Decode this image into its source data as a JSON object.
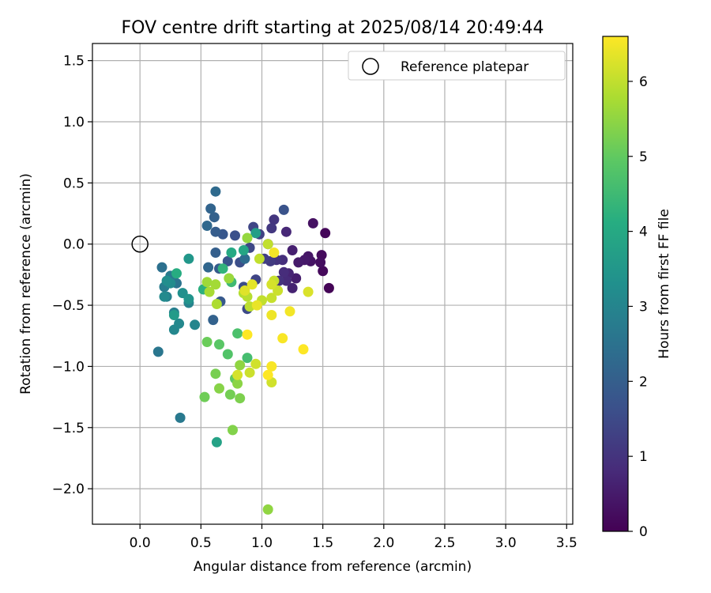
{
  "chart_data": {
    "type": "scatter",
    "title": "FOV centre drift starting at 2025/08/14 20:49:44",
    "xlabel": "Angular distance from reference (arcmin)",
    "ylabel": "Rotation from reference (arcmin)",
    "xlim": [
      -0.39,
      3.55
    ],
    "ylim": [
      -2.29,
      1.64
    ],
    "xticks": [
      0.0,
      0.5,
      1.0,
      1.5,
      2.0,
      2.5,
      3.0,
      3.5
    ],
    "xtick_labels": [
      "0.0",
      "0.5",
      "1.0",
      "1.5",
      "2.0",
      "2.5",
      "3.0",
      "3.5"
    ],
    "yticks": [
      1.5,
      1.0,
      0.5,
      0.0,
      -0.5,
      -1.0,
      -1.5,
      -2.0
    ],
    "ytick_labels": [
      "1.5",
      "1.0",
      "0.5",
      "0.0",
      "−0.5",
      "−1.0",
      "−1.5",
      "−2.0"
    ],
    "grid": true,
    "legend": {
      "placement": "top-right",
      "entries": [
        "Reference platepar"
      ]
    },
    "reference_point": {
      "x": 0.0,
      "y": 0.0,
      "marker": "open circle"
    },
    "colorbar": {
      "label": "Hours from first FF file",
      "range": [
        0,
        6.6
      ],
      "ticks": [
        0,
        1,
        2,
        3,
        4,
        5,
        6
      ],
      "colormap": "viridis"
    },
    "colormap_stops": [
      "#440154",
      "#472c7a",
      "#3b518b",
      "#2c718e",
      "#21908d",
      "#27ad81",
      "#5cc863",
      "#aadc32",
      "#fde725"
    ],
    "series": [
      {
        "marker_color": "viridis by hours",
        "points": [
          [
            1.55,
            -0.36,
            0.05
          ],
          [
            1.52,
            0.09,
            0.1
          ],
          [
            1.5,
            -0.22,
            0.15
          ],
          [
            1.49,
            -0.09,
            0.2
          ],
          [
            1.48,
            -0.15,
            0.25
          ],
          [
            1.42,
            0.17,
            0.3
          ],
          [
            1.4,
            -0.14,
            0.35
          ],
          [
            1.38,
            -0.1,
            0.4
          ],
          [
            1.35,
            -0.13,
            0.45
          ],
          [
            1.3,
            -0.15,
            0.5
          ],
          [
            1.28,
            -0.28,
            0.55
          ],
          [
            1.25,
            -0.05,
            0.6
          ],
          [
            1.25,
            -0.36,
            0.65
          ],
          [
            1.22,
            -0.24,
            0.7
          ],
          [
            1.2,
            0.1,
            0.75
          ],
          [
            1.2,
            -0.3,
            0.8
          ],
          [
            1.18,
            -0.23,
            0.85
          ],
          [
            1.17,
            -0.13,
            0.9
          ],
          [
            1.14,
            -0.3,
            0.95
          ],
          [
            1.12,
            -0.13,
            1.0
          ],
          [
            1.1,
            0.2,
            1.05
          ],
          [
            1.08,
            0.13,
            1.1
          ],
          [
            1.07,
            -0.14,
            1.15
          ],
          [
            1.05,
            0.0,
            1.2
          ],
          [
            1.02,
            -0.12,
            1.25
          ],
          [
            0.98,
            0.08,
            1.3
          ],
          [
            0.95,
            -0.29,
            1.35
          ],
          [
            0.93,
            0.14,
            1.4
          ],
          [
            0.9,
            -0.03,
            1.45
          ],
          [
            0.88,
            -0.53,
            1.5
          ],
          [
            0.85,
            -0.35,
            1.55
          ],
          [
            0.82,
            -0.15,
            1.6
          ],
          [
            0.78,
            0.07,
            1.65
          ],
          [
            1.18,
            0.28,
            1.7
          ],
          [
            0.72,
            -0.14,
            1.75
          ],
          [
            0.68,
            0.08,
            1.8
          ],
          [
            0.66,
            -0.47,
            1.85
          ],
          [
            0.65,
            -0.2,
            1.9
          ],
          [
            0.62,
            0.1,
            1.95
          ],
          [
            0.62,
            -0.07,
            2.0
          ],
          [
            0.61,
            0.22,
            2.05
          ],
          [
            0.6,
            -0.62,
            2.1
          ],
          [
            0.58,
            0.29,
            2.15
          ],
          [
            0.56,
            -0.19,
            2.2
          ],
          [
            0.55,
            0.15,
            2.25
          ],
          [
            0.62,
            0.43,
            2.3
          ],
          [
            0.86,
            -0.12,
            2.35
          ],
          [
            0.18,
            -0.19,
            2.45
          ],
          [
            0.3,
            -0.32,
            2.55
          ],
          [
            0.15,
            -0.88,
            2.6
          ],
          [
            0.33,
            -1.42,
            2.7
          ],
          [
            0.25,
            -0.26,
            2.75
          ],
          [
            0.2,
            -0.35,
            2.8
          ],
          [
            0.28,
            -0.56,
            2.85
          ],
          [
            0.22,
            -0.43,
            2.9
          ],
          [
            0.4,
            -0.48,
            2.95
          ],
          [
            0.45,
            -0.66,
            3.0
          ],
          [
            0.28,
            -0.7,
            3.05
          ],
          [
            0.32,
            -0.65,
            3.1
          ],
          [
            0.2,
            -0.43,
            3.15
          ],
          [
            0.25,
            -0.32,
            3.2
          ],
          [
            0.22,
            -0.3,
            3.25
          ],
          [
            0.35,
            -0.4,
            3.3
          ],
          [
            0.4,
            -0.45,
            3.4
          ],
          [
            0.4,
            -0.12,
            3.5
          ],
          [
            0.28,
            -0.58,
            3.6
          ],
          [
            0.95,
            0.09,
            3.7
          ],
          [
            0.63,
            -1.62,
            3.8
          ],
          [
            0.85,
            -0.05,
            3.9
          ],
          [
            0.75,
            -0.07,
            4.0
          ],
          [
            0.3,
            -0.24,
            4.1
          ],
          [
            0.52,
            -0.37,
            4.2
          ],
          [
            0.68,
            -0.2,
            4.3
          ],
          [
            0.75,
            -0.31,
            4.5
          ],
          [
            0.88,
            -0.93,
            4.6
          ],
          [
            0.8,
            -0.73,
            4.7
          ],
          [
            0.72,
            -0.9,
            4.8
          ],
          [
            0.65,
            -0.82,
            4.9
          ],
          [
            0.78,
            -1.1,
            5.0
          ],
          [
            0.55,
            -0.8,
            5.1
          ],
          [
            0.53,
            -1.25,
            5.15
          ],
          [
            0.74,
            -1.23,
            5.2
          ],
          [
            0.62,
            -1.06,
            5.25
          ],
          [
            0.82,
            -1.26,
            5.3
          ],
          [
            0.76,
            -1.52,
            5.35
          ],
          [
            0.65,
            -1.18,
            5.4
          ],
          [
            0.8,
            -1.14,
            5.45
          ],
          [
            0.82,
            -0.99,
            5.5
          ],
          [
            0.88,
            0.05,
            5.55
          ],
          [
            0.73,
            -0.28,
            5.6
          ],
          [
            0.55,
            -0.31,
            5.65
          ],
          [
            0.62,
            -0.33,
            5.7
          ],
          [
            0.57,
            -0.39,
            5.75
          ],
          [
            0.63,
            -0.49,
            5.8
          ],
          [
            0.85,
            -0.4,
            5.85
          ],
          [
            0.88,
            -0.43,
            5.9
          ],
          [
            0.9,
            -0.51,
            5.95
          ],
          [
            0.98,
            -0.12,
            6.0
          ],
          [
            1.05,
            0.0,
            6.0
          ],
          [
            1.0,
            -0.46,
            6.0
          ],
          [
            1.08,
            -0.44,
            6.05
          ],
          [
            1.1,
            -0.3,
            6.05
          ],
          [
            1.13,
            -0.38,
            6.1
          ],
          [
            0.9,
            -1.05,
            6.1
          ],
          [
            0.95,
            -0.98,
            6.15
          ],
          [
            1.08,
            -1.13,
            6.15
          ],
          [
            1.05,
            -2.17,
            5.5
          ],
          [
            0.8,
            -1.07,
            6.2
          ],
          [
            1.08,
            -0.33,
            6.2
          ],
          [
            1.38,
            -0.39,
            6.25
          ],
          [
            0.86,
            -0.38,
            6.3
          ],
          [
            0.92,
            -0.33,
            6.35
          ],
          [
            0.96,
            -0.5,
            6.4
          ],
          [
            1.08,
            -0.58,
            6.45
          ],
          [
            1.23,
            -0.55,
            6.5
          ],
          [
            1.1,
            -0.07,
            6.5
          ],
          [
            1.08,
            -1.0,
            6.55
          ],
          [
            1.17,
            -0.77,
            6.55
          ],
          [
            1.34,
            -0.86,
            6.6
          ],
          [
            0.88,
            -0.74,
            6.6
          ],
          [
            1.05,
            -1.07,
            6.6
          ]
        ]
      }
    ]
  }
}
